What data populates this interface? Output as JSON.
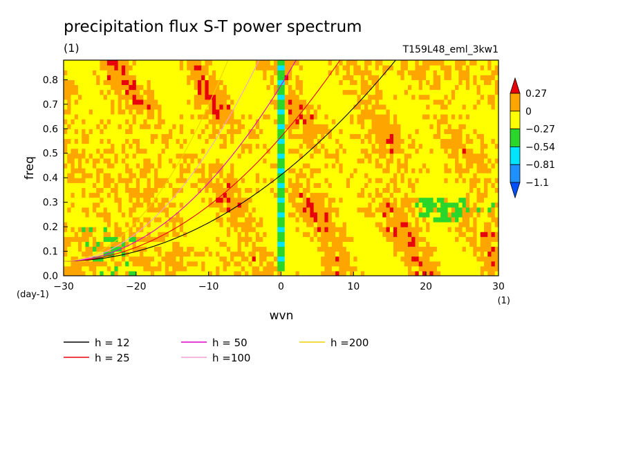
{
  "chart_data": {
    "type": "heatmap",
    "title": "precipitation flux S-T power spectrum",
    "subtitle_left": "(1)",
    "subtitle_right": "T159L48_eml_3kw1",
    "xlabel": "wvn",
    "ylabel": "freq",
    "x_unit": "(1)",
    "y_unit": "(day-1)",
    "xlim": [
      -30,
      30
    ],
    "ylim": [
      0,
      0.88
    ],
    "x_ticks": [
      -30,
      -20,
      -10,
      0,
      10,
      20,
      30
    ],
    "x_tick_labels": [
      "−30",
      "−20",
      "−10",
      "0",
      "10",
      "20",
      "30"
    ],
    "y_ticks": [
      0,
      0.1,
      0.2,
      0.3,
      0.4,
      0.5,
      0.6,
      0.7,
      0.8
    ],
    "y_tick_labels": [
      "0.0",
      "0.1",
      "0.2",
      "0.3",
      "0.4",
      "0.5",
      "0.6",
      "0.7",
      "0.8"
    ],
    "colorbar": {
      "levels": [
        0.27,
        0,
        -0.27,
        -0.54,
        -0.81,
        -1.1
      ],
      "level_labels": [
        "0.27",
        "0",
        "−0.27",
        "−0.54",
        "−0.81",
        "−1.1"
      ],
      "colors": [
        "#e8000b",
        "#ffa500",
        "#ffff00",
        "#2bd62b",
        "#00e5ff",
        "#1e90ff",
        "#0050ff"
      ]
    },
    "dispersion_curves": [
      {
        "name": "h = 12",
        "h": 12,
        "color": "#000000"
      },
      {
        "name": "h = 25",
        "h": 25,
        "color": "#e8000b"
      },
      {
        "name": "h = 50",
        "h": 50,
        "color": "#e000c8"
      },
      {
        "name": "h =100",
        "h": 100,
        "color": "#f0a0d8"
      },
      {
        "name": "h =200",
        "h": 200,
        "color": "#f0d000"
      }
    ]
  }
}
